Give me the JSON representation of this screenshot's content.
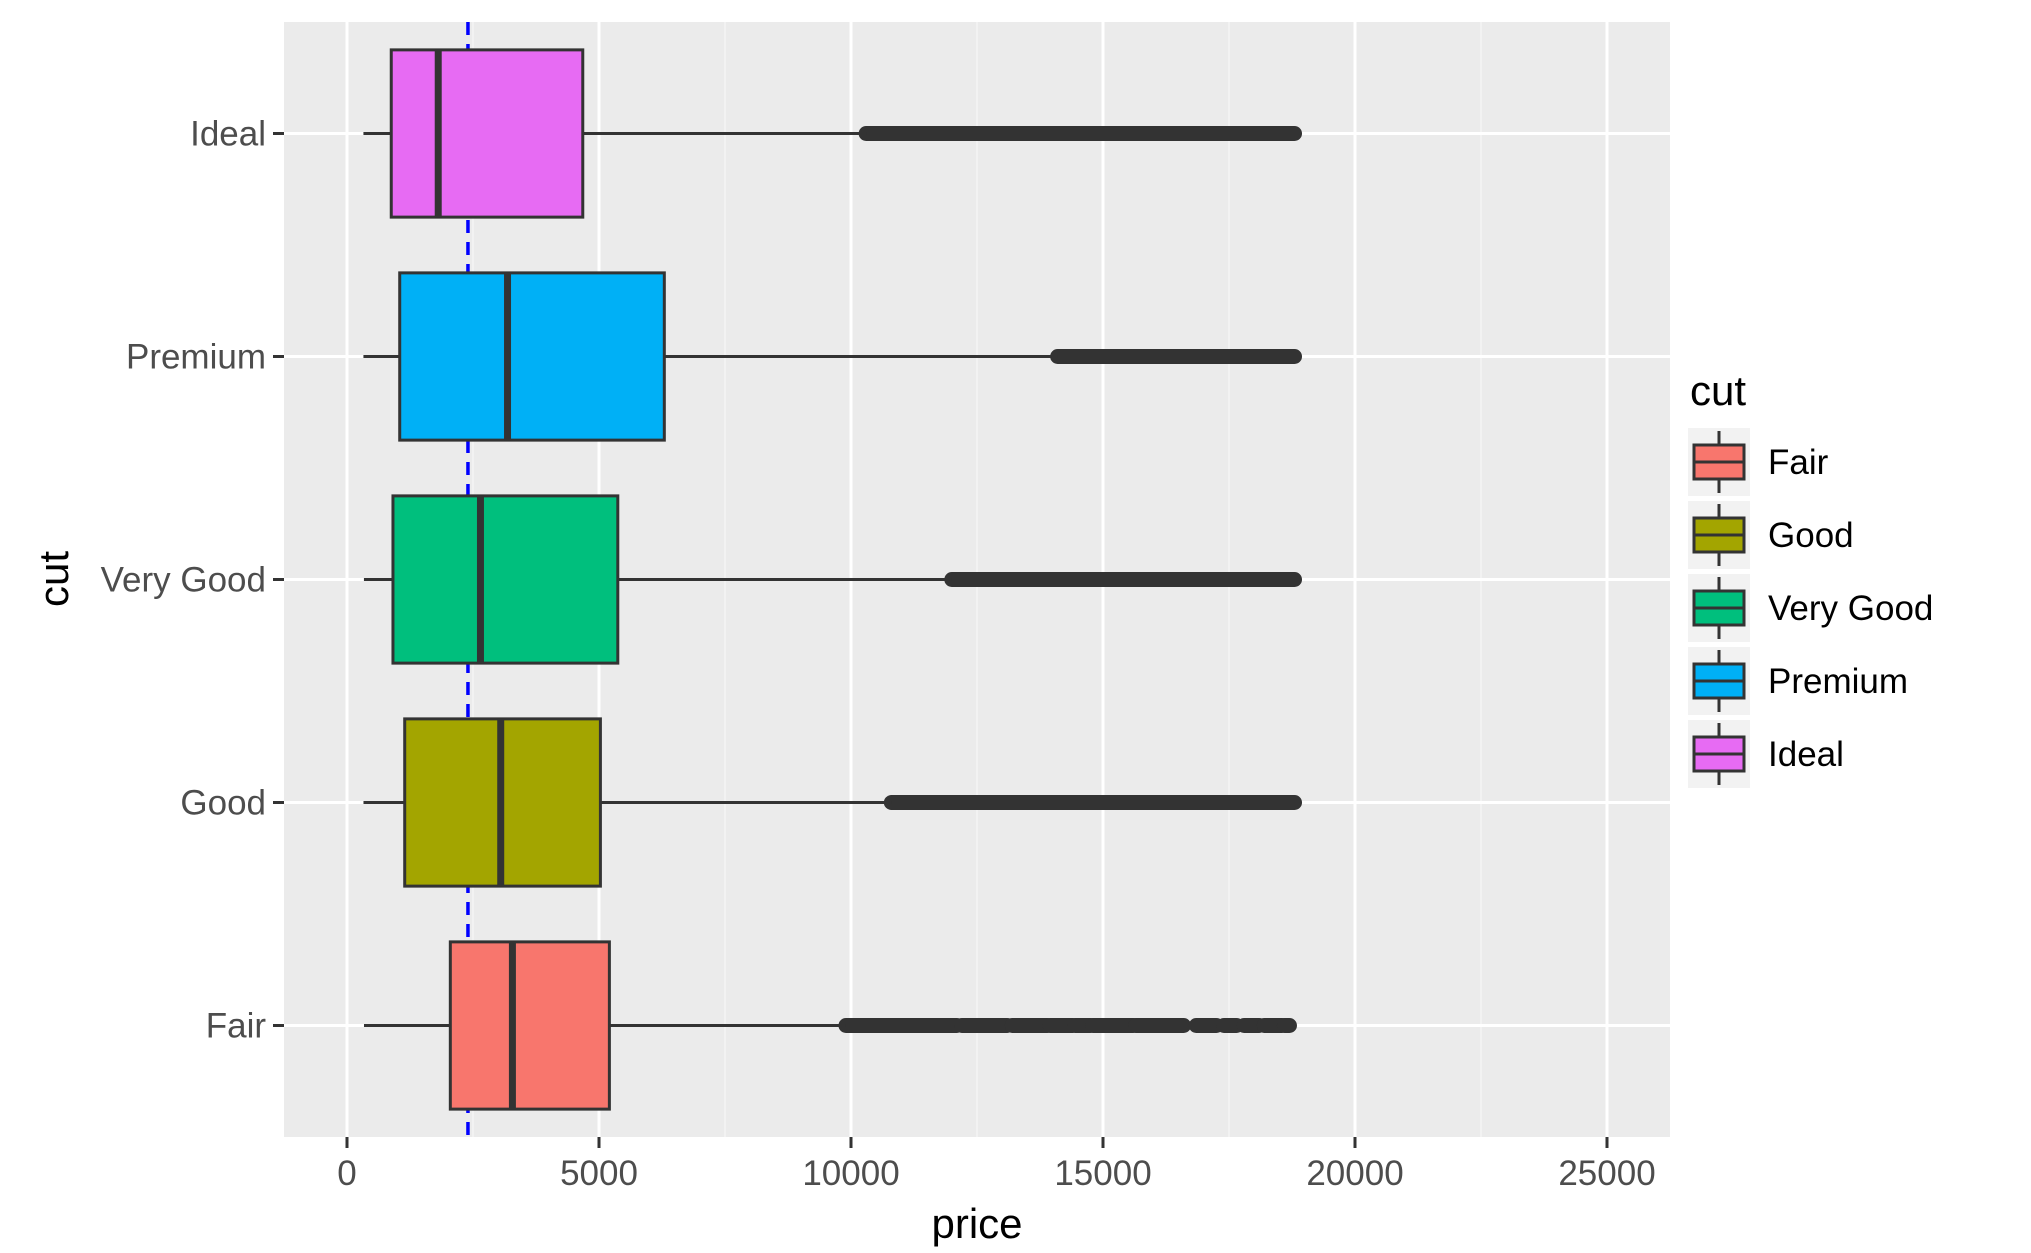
{
  "chart_data": {
    "type": "boxplot",
    "orientation": "horizontal",
    "title": "",
    "xlabel": "price",
    "ylabel": "cut",
    "xlim": [
      -1250,
      26250
    ],
    "x_ticks": [
      0,
      5000,
      10000,
      15000,
      20000,
      25000
    ],
    "x_tick_labels": [
      "0",
      "5000",
      "10000",
      "15000",
      "20000",
      "25000"
    ],
    "categories": [
      "Fair",
      "Good",
      "Very Good",
      "Premium",
      "Ideal"
    ],
    "grid": true,
    "reference_line": {
      "x": 2400,
      "style": "dashed",
      "color": "#0000ff"
    },
    "series": [
      {
        "name": "Fair",
        "color": "#F8766D",
        "whisker_low": 337,
        "q1": 2050,
        "median": 3282,
        "q3": 5206,
        "whisker_high": 9900,
        "outlier_segments": [
          [
            9900,
            12100
          ],
          [
            12200,
            13100
          ],
          [
            13200,
            13900
          ],
          [
            13950,
            14400
          ],
          [
            14450,
            14750
          ],
          [
            14800,
            15600
          ],
          [
            15650,
            16600
          ],
          [
            16850,
            17250
          ],
          [
            17400,
            17650
          ],
          [
            17800,
            18100
          ],
          [
            18200,
            18550
          ],
          [
            18600,
            18700
          ]
        ]
      },
      {
        "name": "Good",
        "color": "#A3A500",
        "whisker_low": 327,
        "q1": 1145,
        "median": 3050,
        "q3": 5028,
        "whisker_high": 10800,
        "outlier_segments": [
          [
            10800,
            18800
          ]
        ]
      },
      {
        "name": "Very Good",
        "color": "#00BF7D",
        "whisker_low": 336,
        "q1": 912,
        "median": 2648,
        "q3": 5373,
        "whisker_high": 12000,
        "outlier_segments": [
          [
            12000,
            18800
          ]
        ]
      },
      {
        "name": "Premium",
        "color": "#00B0F6",
        "whisker_low": 326,
        "q1": 1046,
        "median": 3185,
        "q3": 6296,
        "whisker_high": 14100,
        "outlier_segments": [
          [
            14100,
            18800
          ]
        ]
      },
      {
        "name": "Ideal",
        "color": "#E76BF3",
        "whisker_low": 326,
        "q1": 878,
        "median": 1810,
        "q3": 4678,
        "whisker_high": 10300,
        "outlier_segments": [
          [
            10300,
            18800
          ]
        ]
      }
    ],
    "legend": {
      "title": "cut",
      "position": "right",
      "items": [
        "Fair",
        "Good",
        "Very Good",
        "Premium",
        "Ideal"
      ]
    }
  },
  "colors": {
    "panel_background": "#EBEBEB",
    "grid_major": "#FFFFFF",
    "grid_minor": "#F5F5F5",
    "box_outline": "#333333",
    "outlier": "#333333"
  }
}
